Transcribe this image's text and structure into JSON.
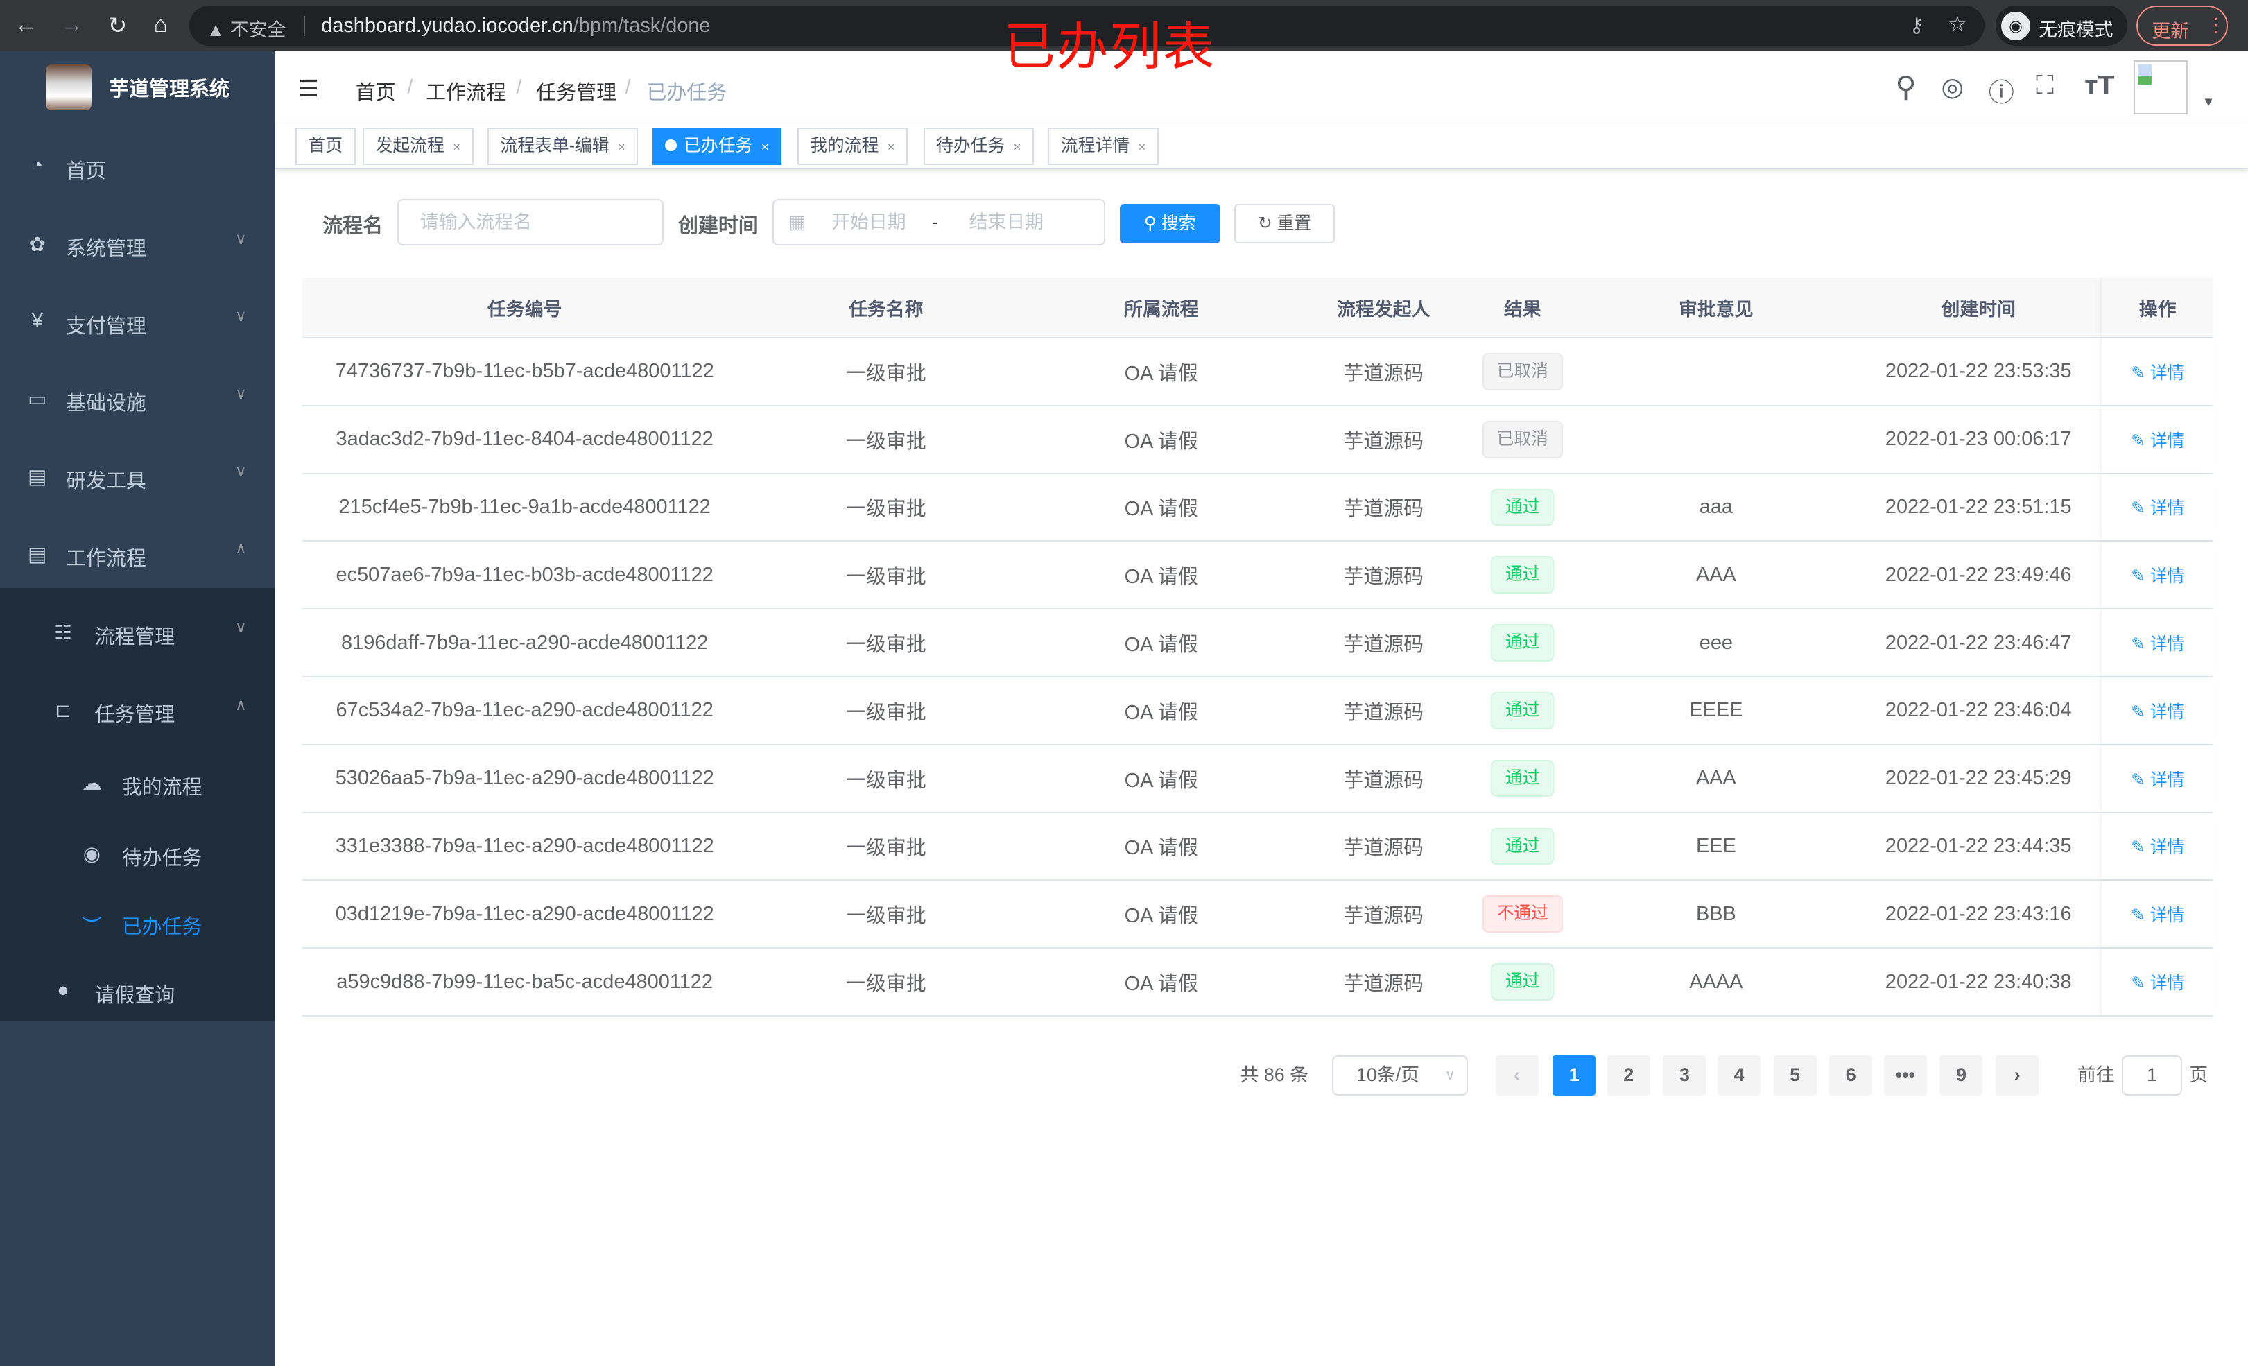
{
  "browser": {
    "security": "不安全",
    "url_host": "dashboard.yudao.iocoder.cn",
    "url_path": "/bpm/task/done",
    "incognito": "无痕模式",
    "update": "更新"
  },
  "annotation_title": "已办列表",
  "sidebar": {
    "title": "芋道管理系统",
    "items": [
      {
        "label": "首页",
        "icon": "dashboard-icon"
      },
      {
        "label": "系统管理",
        "icon": "gear-icon"
      },
      {
        "label": "支付管理",
        "icon": "yen-icon"
      },
      {
        "label": "基础设施",
        "icon": "monitor-icon"
      },
      {
        "label": "研发工具",
        "icon": "toolbox-icon"
      },
      {
        "label": "工作流程",
        "icon": "toolbox-icon"
      },
      {
        "label": "流程管理",
        "icon": "list-icon"
      },
      {
        "label": "任务管理",
        "icon": "tree-icon"
      },
      {
        "label": "我的流程",
        "icon": "cloud-icon"
      },
      {
        "label": "待办任务",
        "icon": "eye-icon"
      },
      {
        "label": "已办任务",
        "icon": "eye-closed-icon"
      },
      {
        "label": "请假查询",
        "icon": "user-icon"
      }
    ]
  },
  "breadcrumb": [
    "首页",
    "工作流程",
    "任务管理",
    "已办任务"
  ],
  "tags": [
    "首页",
    "发起流程",
    "流程表单-编辑",
    "已办任务",
    "我的流程",
    "待办任务",
    "流程详情"
  ],
  "filters": {
    "name_label": "流程名",
    "name_placeholder": "请输入流程名",
    "time_label": "创建时间",
    "start_placeholder": "开始日期",
    "range_sep": "-",
    "end_placeholder": "结束日期",
    "search": "搜索",
    "reset": "重置"
  },
  "table": {
    "columns": [
      "任务编号",
      "任务名称",
      "所属流程",
      "流程发起人",
      "结果",
      "审批意见",
      "创建时间",
      "操作"
    ],
    "action_label": "详情",
    "rows": [
      {
        "id": "74736737-7b9b-11ec-b5b7-acde48001122",
        "name": "一级审批",
        "process": "OA 请假",
        "starter": "芋道源码",
        "result": "已取消",
        "status": "cancel",
        "comment": "",
        "time": "2022-01-22 23:53:35"
      },
      {
        "id": "3adac3d2-7b9d-11ec-8404-acde48001122",
        "name": "一级审批",
        "process": "OA 请假",
        "starter": "芋道源码",
        "result": "已取消",
        "status": "cancel",
        "comment": "",
        "time": "2022-01-23 00:06:17"
      },
      {
        "id": "215cf4e5-7b9b-11ec-9a1b-acde48001122",
        "name": "一级审批",
        "process": "OA 请假",
        "starter": "芋道源码",
        "result": "通过",
        "status": "ok",
        "comment": "aaa",
        "time": "2022-01-22 23:51:15"
      },
      {
        "id": "ec507ae6-7b9a-11ec-b03b-acde48001122",
        "name": "一级审批",
        "process": "OA 请假",
        "starter": "芋道源码",
        "result": "通过",
        "status": "ok",
        "comment": "AAA",
        "time": "2022-01-22 23:49:46"
      },
      {
        "id": "8196daff-7b9a-11ec-a290-acde48001122",
        "name": "一级审批",
        "process": "OA 请假",
        "starter": "芋道源码",
        "result": "通过",
        "status": "ok",
        "comment": "eee",
        "time": "2022-01-22 23:46:47"
      },
      {
        "id": "67c534a2-7b9a-11ec-a290-acde48001122",
        "name": "一级审批",
        "process": "OA 请假",
        "starter": "芋道源码",
        "result": "通过",
        "status": "ok",
        "comment": "EEEE",
        "time": "2022-01-22 23:46:04"
      },
      {
        "id": "53026aa5-7b9a-11ec-a290-acde48001122",
        "name": "一级审批",
        "process": "OA 请假",
        "starter": "芋道源码",
        "result": "通过",
        "status": "ok",
        "comment": "AAA",
        "time": "2022-01-22 23:45:29"
      },
      {
        "id": "331e3388-7b9a-11ec-a290-acde48001122",
        "name": "一级审批",
        "process": "OA 请假",
        "starter": "芋道源码",
        "result": "通过",
        "status": "ok",
        "comment": "EEE",
        "time": "2022-01-22 23:44:35"
      },
      {
        "id": "03d1219e-7b9a-11ec-a290-acde48001122",
        "name": "一级审批",
        "process": "OA 请假",
        "starter": "芋道源码",
        "result": "不通过",
        "status": "no",
        "comment": "BBB",
        "time": "2022-01-22 23:43:16"
      },
      {
        "id": "a59c9d88-7b99-11ec-ba5c-acde48001122",
        "name": "一级审批",
        "process": "OA 请假",
        "starter": "芋道源码",
        "result": "通过",
        "status": "ok",
        "comment": "AAAA",
        "time": "2022-01-22 23:40:38"
      }
    ]
  },
  "pagination": {
    "total": "共 86 条",
    "page_size": "10条/页",
    "pages": [
      "1",
      "2",
      "3",
      "4",
      "5",
      "6",
      "•••",
      "9"
    ],
    "current": "1",
    "goto_label": "前往",
    "goto_value": "1",
    "goto_suffix": "页"
  },
  "colors": {
    "primary": "#1890ff",
    "sidebar": "#304156",
    "success": "#13ce66",
    "danger": "#ff4949",
    "annotation": "#f2180d"
  }
}
